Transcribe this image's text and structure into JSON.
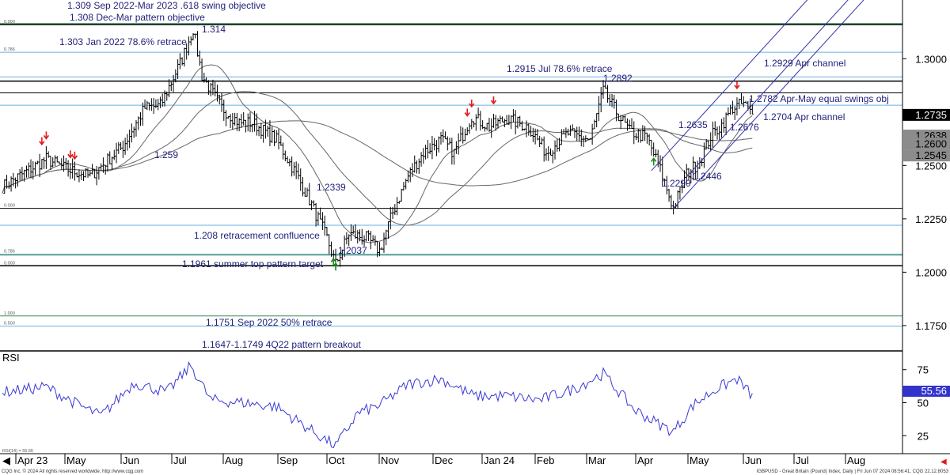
{
  "footer": {
    "left": "CQG Inc. © 2024 All rights reserved worldwide. http://www.cqg.com",
    "right": "IGBPUSD - Great Britain (Pound) Index, Daily | Fri Jun 07 2024 08:56:41, CQG 22.12.8053"
  },
  "colors": {
    "annotation": "#1f1f7a",
    "bars": "#000000",
    "ma": "#666666",
    "channel": "#3333aa",
    "rsi": "#3a3ad6",
    "fib_line": "#6ab0e0",
    "green_line": "#2e8b57",
    "arrow_down": "#e31b1b",
    "arrow_up": "#1a8a1a",
    "current_price_box": "#000000",
    "rsi_value_box": "#3333cc"
  },
  "chart_data": {
    "type": "ohlc",
    "price_axis": {
      "ylim": [
        1.1635,
        1.3275
      ],
      "ticks": [
        "1.3000",
        "1.2750",
        "1.2500",
        "1.2250",
        "1.2000",
        "1.1750"
      ]
    },
    "rsi_axis": {
      "ylim": [
        12,
        88
      ],
      "ticks": [
        "75",
        "50",
        "25"
      ],
      "label": "RSI",
      "period_label": "RSI(14) = 55.56",
      "value": "55.56"
    },
    "months": [
      "Apr 23",
      "May",
      "Jun",
      "Jul",
      "Aug",
      "Sep",
      "Oct",
      "Nov",
      "Dec",
      "Jan 24",
      "Feb",
      "Mar",
      "Apr",
      "May",
      "Jun",
      "Jul",
      "Aug"
    ],
    "price_boxes": [
      {
        "label": "1.2735",
        "value": 1.2735,
        "style": "black"
      },
      {
        "label": "1.2638",
        "value": 1.2638,
        "style": "gray"
      },
      {
        "label": "1.2600",
        "value": 1.26,
        "style": "gray"
      },
      {
        "label": "1.2545",
        "value": 1.2545,
        "style": "gray"
      }
    ],
    "key_points": [
      {
        "day": 0,
        "close": 1.24
      },
      {
        "day": 20,
        "close": 1.253
      },
      {
        "day": 30,
        "close": 1.248
      },
      {
        "day": 40,
        "close": 1.245
      },
      {
        "day": 55,
        "close": 1.259
      },
      {
        "day": 65,
        "close": 1.277
      },
      {
        "day": 72,
        "close": 1.278
      },
      {
        "day": 82,
        "close": 1.3
      },
      {
        "day": 87,
        "close": 1.314
      },
      {
        "day": 91,
        "close": 1.292
      },
      {
        "day": 100,
        "close": 1.277
      },
      {
        "day": 108,
        "close": 1.27
      },
      {
        "day": 114,
        "close": 1.27
      },
      {
        "day": 125,
        "close": 1.262
      },
      {
        "day": 134,
        "close": 1.246
      },
      {
        "day": 140,
        "close": 1.2339
      },
      {
        "day": 148,
        "close": 1.216
      },
      {
        "day": 152,
        "close": 1.2037
      },
      {
        "day": 158,
        "close": 1.218
      },
      {
        "day": 166,
        "close": 1.216
      },
      {
        "day": 172,
        "close": 1.21
      },
      {
        "day": 178,
        "close": 1.228
      },
      {
        "day": 185,
        "close": 1.245
      },
      {
        "day": 192,
        "close": 1.256
      },
      {
        "day": 200,
        "close": 1.262
      },
      {
        "day": 206,
        "close": 1.256
      },
      {
        "day": 214,
        "close": 1.273
      },
      {
        "day": 222,
        "close": 1.268
      },
      {
        "day": 230,
        "close": 1.272
      },
      {
        "day": 240,
        "close": 1.268
      },
      {
        "day": 248,
        "close": 1.256
      },
      {
        "day": 258,
        "close": 1.265
      },
      {
        "day": 268,
        "close": 1.262
      },
      {
        "day": 274,
        "close": 1.285
      },
      {
        "day": 280,
        "close": 1.275
      },
      {
        "day": 286,
        "close": 1.266
      },
      {
        "day": 294,
        "close": 1.263
      },
      {
        "day": 300,
        "close": 1.248
      },
      {
        "day": 306,
        "close": 1.2299
      },
      {
        "day": 312,
        "close": 1.246
      },
      {
        "day": 318,
        "close": 1.252
      },
      {
        "day": 323,
        "close": 1.2635
      },
      {
        "day": 328,
        "close": 1.269
      },
      {
        "day": 333,
        "close": 1.277
      },
      {
        "day": 338,
        "close": 1.279
      },
      {
        "day": 342,
        "close": 1.2735
      }
    ],
    "rsi_points": [
      {
        "day": 0,
        "v": 58
      },
      {
        "day": 20,
        "v": 62
      },
      {
        "day": 35,
        "v": 48
      },
      {
        "day": 45,
        "v": 40
      },
      {
        "day": 60,
        "v": 65
      },
      {
        "day": 75,
        "v": 58
      },
      {
        "day": 86,
        "v": 78
      },
      {
        "day": 95,
        "v": 52
      },
      {
        "day": 110,
        "v": 50
      },
      {
        "day": 125,
        "v": 47
      },
      {
        "day": 140,
        "v": 30
      },
      {
        "day": 152,
        "v": 17
      },
      {
        "day": 162,
        "v": 42
      },
      {
        "day": 172,
        "v": 48
      },
      {
        "day": 185,
        "v": 64
      },
      {
        "day": 200,
        "v": 68
      },
      {
        "day": 215,
        "v": 55
      },
      {
        "day": 230,
        "v": 55
      },
      {
        "day": 245,
        "v": 52
      },
      {
        "day": 260,
        "v": 60
      },
      {
        "day": 274,
        "v": 72
      },
      {
        "day": 288,
        "v": 45
      },
      {
        "day": 298,
        "v": 35
      },
      {
        "day": 306,
        "v": 28
      },
      {
        "day": 315,
        "v": 48
      },
      {
        "day": 325,
        "v": 60
      },
      {
        "day": 335,
        "v": 68
      },
      {
        "day": 342,
        "v": 55
      }
    ],
    "horizontal_levels": [
      {
        "value": 1.316,
        "color": "#000000",
        "width": 1.5,
        "tag": "0.000"
      },
      {
        "value": 1.3165,
        "color": "#2e8b57",
        "width": 1,
        "tag": ""
      },
      {
        "value": 1.303,
        "color": "#6ab0e0",
        "width": 1,
        "tag": "0.786"
      },
      {
        "value": 1.2915,
        "color": "#6ab0e0",
        "width": 1,
        "tag": ""
      },
      {
        "value": 1.2895,
        "color": "#000000",
        "width": 1.5,
        "tag": ""
      },
      {
        "value": 1.284,
        "color": "#000000",
        "width": 1,
        "tag": ""
      },
      {
        "value": 1.2782,
        "color": "#6ab0e0",
        "width": 1,
        "tag": ""
      },
      {
        "value": 1.2299,
        "color": "#000000",
        "width": 1,
        "tag": "0.000"
      },
      {
        "value": 1.222,
        "color": "#6ab0e0",
        "width": 1,
        "tag": ""
      },
      {
        "value": 1.2085,
        "color": "#6ab0e0",
        "width": 1,
        "tag": "0.786"
      },
      {
        "value": 1.208,
        "color": "#2e8b57",
        "width": 1,
        "tag": ""
      },
      {
        "value": 1.203,
        "color": "#000000",
        "width": 1.5,
        "tag": "0.000"
      },
      {
        "value": 1.1795,
        "color": "#2e8b57",
        "width": 1,
        "tag": "1.000"
      },
      {
        "value": 1.1747,
        "color": "#6ab0e0",
        "width": 1,
        "tag": "0.500"
      }
    ],
    "channel": [
      {
        "from": {
          "day": 306,
          "price": 1.2299
        },
        "to": {
          "day": 342,
          "price": 1.2704
        }
      },
      {
        "from": {
          "day": 296,
          "price": 1.2476
        },
        "to": {
          "day": 332,
          "price": 1.2881
        }
      },
      {
        "from": {
          "day": 312,
          "price": 1.2446
        },
        "to": {
          "day": 342,
          "price": 1.2784
        }
      }
    ],
    "annotations": [
      {
        "text": "1.309 Sep 2022-Mar 2023 .618 swing objective"
      },
      {
        "text": "1.308 Dec-Mar pattern objective"
      },
      {
        "text": "1.303 Jan 2022 78.6% retrace"
      },
      {
        "text": "1.314"
      },
      {
        "text": "1.259"
      },
      {
        "text": "1.2339"
      },
      {
        "text": "1.208 retracement confluence"
      },
      {
        "text": "1.2037"
      },
      {
        "text": "1.1961 summer top pattern target"
      },
      {
        "text": "1.1751 Sep 2022 50% retrace"
      },
      {
        "text": "1.1647-1.1749 4Q22 pattern breakout"
      },
      {
        "text": "1.2915 Jul 78.6% retrace"
      },
      {
        "text": "1.2892"
      },
      {
        "text": "1.2929 Apr channel"
      },
      {
        "text": "1.2782 Apr-May equal swings obj"
      },
      {
        "text": "1.2704 Apr channel"
      },
      {
        "text": "1.2635"
      },
      {
        "text": "1.2676"
      },
      {
        "text": "1.2446"
      },
      {
        "text": "1.2299"
      }
    ],
    "arrows": [
      {
        "dir": "down",
        "day": 18
      },
      {
        "dir": "down",
        "day": 20
      },
      {
        "dir": "down",
        "day": 31
      },
      {
        "dir": "down",
        "day": 33
      },
      {
        "dir": "down",
        "day": 212
      },
      {
        "dir": "down",
        "day": 214
      },
      {
        "dir": "down",
        "day": 224
      },
      {
        "dir": "down",
        "day": 335
      },
      {
        "dir": "up",
        "day": 151
      },
      {
        "dir": "up",
        "day": 152
      },
      {
        "dir": "up",
        "day": 297
      }
    ]
  }
}
